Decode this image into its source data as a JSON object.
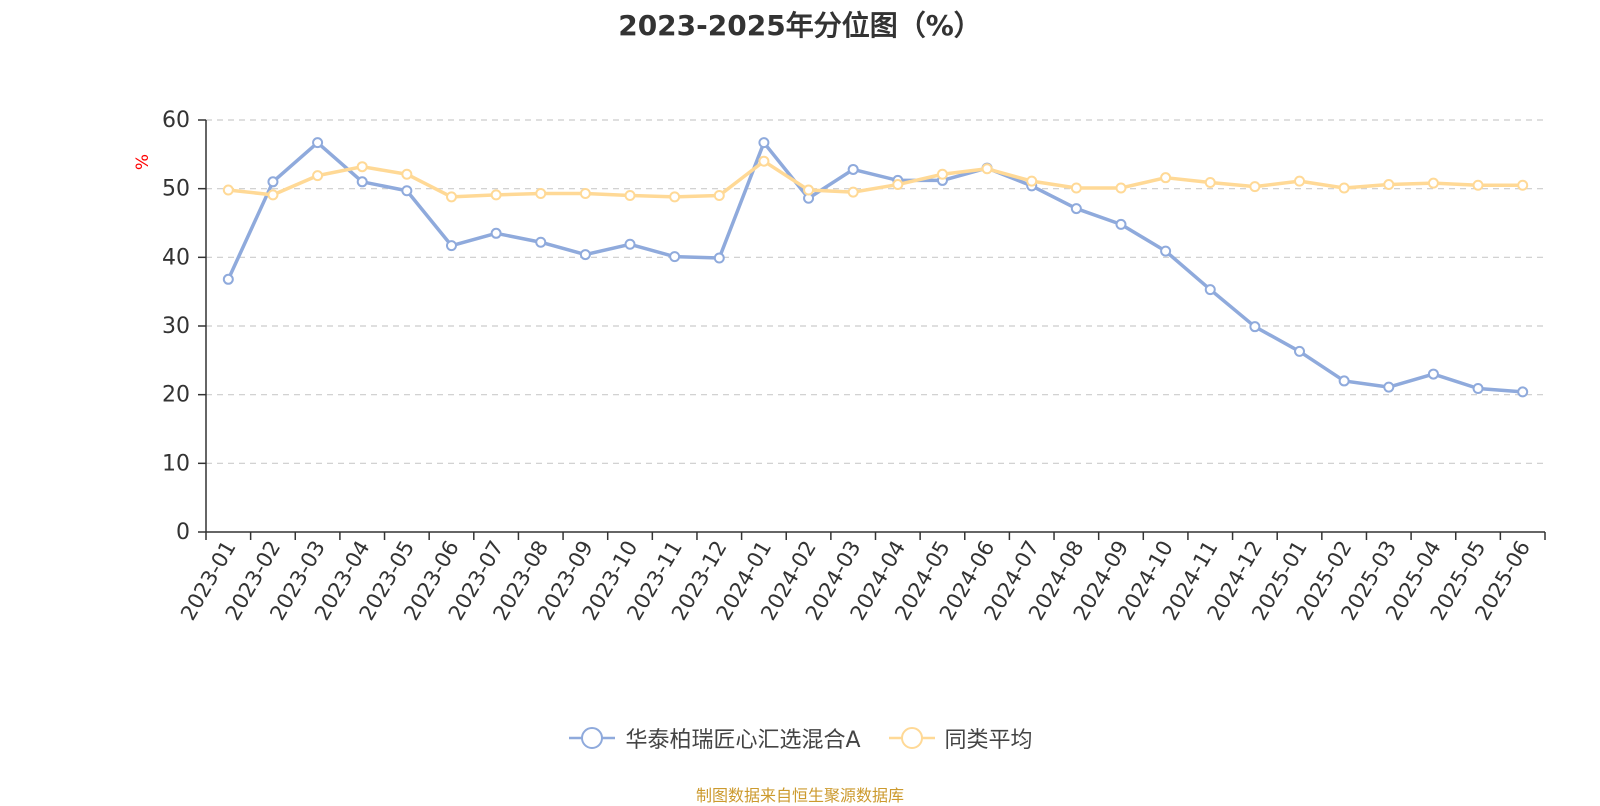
{
  "chart_data": {
    "type": "line",
    "title": "2023-2025年分位图（%）",
    "ylabel": "%",
    "xlabel": "",
    "ylim": [
      0,
      60
    ],
    "yticks": [
      0,
      10,
      20,
      30,
      40,
      50,
      60
    ],
    "grid": true,
    "legend_position": "bottom",
    "categories": [
      "2023-01",
      "2023-02",
      "2023-03",
      "2023-04",
      "2023-05",
      "2023-06",
      "2023-07",
      "2023-08",
      "2023-09",
      "2023-10",
      "2023-11",
      "2023-12",
      "2024-01",
      "2024-02",
      "2024-03",
      "2024-04",
      "2024-05",
      "2024-06",
      "2024-07",
      "2024-08",
      "2024-09",
      "2024-10",
      "2024-11",
      "2024-12",
      "2025-01",
      "2025-02",
      "2025-03",
      "2025-04",
      "2025-05",
      "2025-06"
    ],
    "series": [
      {
        "name": "华泰柏瑞匠心汇选混合A",
        "color": "#8faadc",
        "values": [
          36.8,
          51.0,
          56.7,
          51.0,
          49.7,
          41.7,
          43.5,
          42.2,
          40.4,
          41.9,
          40.1,
          39.9,
          56.7,
          48.6,
          52.8,
          51.2,
          51.2,
          53.0,
          50.4,
          47.1,
          44.8,
          40.9,
          35.3,
          29.9,
          26.3,
          22.0,
          21.1,
          23.0,
          20.9,
          20.4
        ]
      },
      {
        "name": "同类平均",
        "color": "#ffd996",
        "values": [
          49.8,
          49.1,
          51.9,
          53.2,
          52.1,
          48.8,
          49.1,
          49.3,
          49.3,
          49.0,
          48.8,
          49.0,
          54.0,
          49.8,
          49.5,
          50.6,
          52.1,
          52.9,
          51.1,
          50.1,
          50.1,
          51.6,
          50.9,
          50.3,
          51.1,
          50.1,
          50.6,
          50.8,
          50.5,
          50.5
        ]
      }
    ]
  },
  "source_text": "制图数据来自恒生聚源数据库",
  "source_color": "#cc9a2e"
}
